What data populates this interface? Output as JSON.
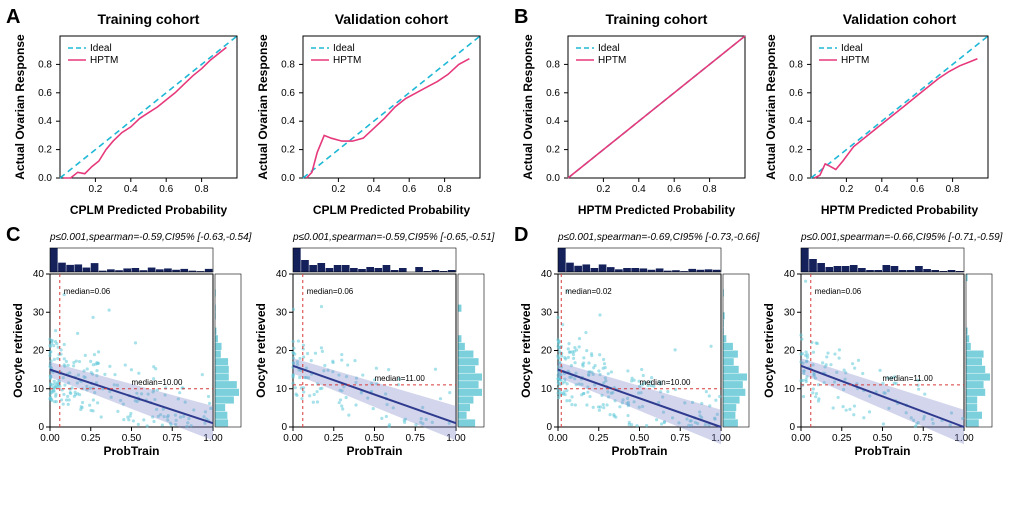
{
  "colors": {
    "ideal": "#1eb8d6",
    "hptm": "#e6397b",
    "axis": "#000000",
    "scatter_point": "#5fc8d9",
    "scatter_line": "#2f3b8f",
    "scatter_band": "#7e86c9",
    "marg_dark": "#14215b",
    "marg_light": "#7cd0dc",
    "ref_red": "#d63a3a",
    "boxcol": "#000000"
  },
  "calib": {
    "xticks": [
      0.2,
      0.4,
      0.6,
      0.8
    ],
    "yticks": [
      0.0,
      0.2,
      0.4,
      0.6,
      0.8
    ],
    "ylabel": "Actual Ovarian Response",
    "legend": [
      "Ideal",
      "HPTM"
    ],
    "A": {
      "title": "Training cohort / Validation cohort",
      "titles": [
        "Training cohort",
        "Validation cohort"
      ],
      "xlabel": "CPLM Predicted Probability",
      "train_curve": [
        [
          0.02,
          0.0
        ],
        [
          0.06,
          0.0
        ],
        [
          0.1,
          0.04
        ],
        [
          0.14,
          0.03
        ],
        [
          0.18,
          0.08
        ],
        [
          0.22,
          0.12
        ],
        [
          0.26,
          0.2
        ],
        [
          0.3,
          0.26
        ],
        [
          0.35,
          0.32
        ],
        [
          0.4,
          0.36
        ],
        [
          0.45,
          0.42
        ],
        [
          0.5,
          0.46
        ],
        [
          0.55,
          0.5
        ],
        [
          0.6,
          0.55
        ],
        [
          0.65,
          0.6
        ],
        [
          0.7,
          0.66
        ],
        [
          0.75,
          0.72
        ],
        [
          0.8,
          0.77
        ],
        [
          0.85,
          0.83
        ],
        [
          0.9,
          0.88
        ],
        [
          0.94,
          0.92
        ]
      ],
      "valid_curve": [
        [
          0.02,
          0.0
        ],
        [
          0.05,
          0.04
        ],
        [
          0.08,
          0.18
        ],
        [
          0.12,
          0.3
        ],
        [
          0.16,
          0.28
        ],
        [
          0.22,
          0.26
        ],
        [
          0.28,
          0.26
        ],
        [
          0.34,
          0.28
        ],
        [
          0.4,
          0.35
        ],
        [
          0.46,
          0.42
        ],
        [
          0.52,
          0.5
        ],
        [
          0.58,
          0.56
        ],
        [
          0.64,
          0.6
        ],
        [
          0.7,
          0.64
        ],
        [
          0.76,
          0.68
        ],
        [
          0.82,
          0.73
        ],
        [
          0.88,
          0.8
        ],
        [
          0.94,
          0.84
        ]
      ]
    },
    "B": {
      "titles": [
        "Training cohort",
        "Validation cohort"
      ],
      "xlabel": "HPTM Predicted Probability",
      "train_curve": [
        [
          0.0,
          0.0
        ],
        [
          1.0,
          1.0
        ]
      ],
      "valid_curve": [
        [
          0.02,
          0.0
        ],
        [
          0.05,
          0.02
        ],
        [
          0.08,
          0.1
        ],
        [
          0.11,
          0.08
        ],
        [
          0.14,
          0.06
        ],
        [
          0.18,
          0.12
        ],
        [
          0.24,
          0.22
        ],
        [
          0.3,
          0.28
        ],
        [
          0.36,
          0.34
        ],
        [
          0.42,
          0.4
        ],
        [
          0.48,
          0.46
        ],
        [
          0.54,
          0.52
        ],
        [
          0.6,
          0.58
        ],
        [
          0.66,
          0.64
        ],
        [
          0.72,
          0.7
        ],
        [
          0.78,
          0.75
        ],
        [
          0.84,
          0.79
        ],
        [
          0.9,
          0.82
        ],
        [
          0.94,
          0.84
        ]
      ]
    }
  },
  "scatter": {
    "y_max": 40,
    "yticks": [
      0,
      10,
      20,
      30,
      40
    ],
    "xticks": [
      0.0,
      0.25,
      0.5,
      0.75,
      1.0
    ],
    "xlabel": "ProbTrain",
    "ylabel": "Oocyte retrieved",
    "C": {
      "t": {
        "stat": "p≤0.001,spearman=-0.59,CI95% [-0.63,-0.54]",
        "vx": 0.06,
        "vlabel": "median=0.06",
        "hy": 10,
        "hlabel": "median=10.00",
        "slope_a": 15,
        "slope_b": -14
      },
      "v": {
        "stat": "p≤0.001,spearman=-0.59,CI95% [-0.65,-0.51]",
        "vx": 0.06,
        "vlabel": "median=0.06",
        "hy": 11,
        "hlabel": "median=11.00",
        "slope_a": 16,
        "slope_b": -15
      }
    },
    "D": {
      "t": {
        "stat": "p≤0.001,spearman=-0.69,CI95% [-0.73,-0.66]",
        "vx": 0.02,
        "vlabel": "median=0.02",
        "hy": 10,
        "hlabel": "median=10.00",
        "slope_a": 15,
        "slope_b": -15
      },
      "v": {
        "stat": "p≤0.001,spearman=-0.66,CI95% [-0.71,-0.59]",
        "vx": 0.06,
        "vlabel": "median=0.06",
        "hy": 11,
        "hlabel": "median=11.00",
        "slope_a": 16,
        "slope_b": -16
      }
    }
  },
  "layout": {
    "calib_w": 235,
    "calib_h": 210,
    "scat_w": 235,
    "scat_h": 235
  },
  "fonts": {
    "title": 14,
    "title_weight": 700,
    "axis_label": 12,
    "axis_label_weight": 700,
    "tick": 10,
    "legend": 10,
    "stat": 10,
    "stat_style": "italic",
    "anno": 8
  }
}
